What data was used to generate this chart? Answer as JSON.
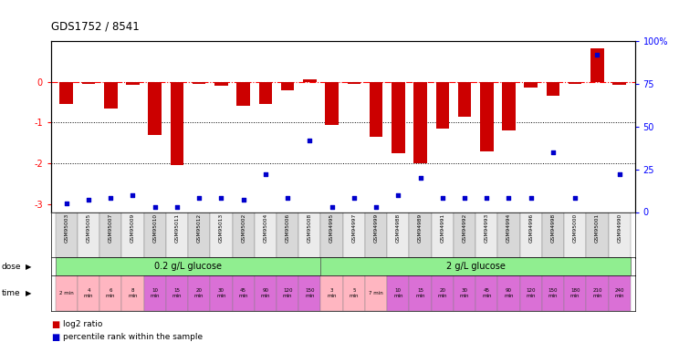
{
  "title": "GDS1752 / 8541",
  "samples": [
    "GSM95003",
    "GSM95005",
    "GSM95007",
    "GSM95009",
    "GSM95010",
    "GSM95011",
    "GSM95012",
    "GSM95013",
    "GSM95002",
    "GSM95004",
    "GSM95006",
    "GSM95008",
    "GSM94995",
    "GSM94997",
    "GSM94999",
    "GSM94988",
    "GSM94989",
    "GSM94991",
    "GSM94992",
    "GSM94993",
    "GSM94994",
    "GSM94996",
    "GSM94998",
    "GSM95000",
    "GSM95001",
    "GSM94990"
  ],
  "log2_ratio": [
    -0.55,
    -0.05,
    -0.65,
    -0.08,
    -1.3,
    -2.05,
    -0.05,
    -0.1,
    -0.6,
    -0.55,
    -0.2,
    0.07,
    -1.05,
    -0.05,
    -1.35,
    -1.75,
    -2.0,
    -1.15,
    -0.85,
    -1.7,
    -1.2,
    -0.15,
    -0.35,
    -0.05,
    0.82,
    -0.08
  ],
  "percentile": [
    5,
    7,
    8,
    10,
    3,
    3,
    8,
    8,
    7,
    22,
    8,
    42,
    3,
    8,
    3,
    10,
    20,
    8,
    8,
    8,
    8,
    8,
    35,
    8,
    92,
    22
  ],
  "dose_labels": [
    "0.2 g/L glucose",
    "2 g/L glucose"
  ],
  "dose_split": 12,
  "time_labels_02": [
    "2 min",
    "4\nmin",
    "6\nmin",
    "8\nmin",
    "10\nmin",
    "15\nmin",
    "20\nmin",
    "30\nmin",
    "45\nmin",
    "90\nmin",
    "120\nmin",
    "150\nmin"
  ],
  "time_labels_2": [
    "3\nmin",
    "5\nmin",
    "7 min",
    "10\nmin",
    "15\nmin",
    "20\nmin",
    "30\nmin",
    "45\nmin",
    "90\nmin",
    "120\nmin",
    "150\nmin",
    "180\nmin",
    "210\nmin",
    "240\nmin"
  ],
  "time_color_02": [
    "#ffb6c1",
    "#ffb6c1",
    "#ffb6c1",
    "#ffb6c1",
    "#da70d6",
    "#da70d6",
    "#da70d6",
    "#da70d6",
    "#da70d6",
    "#da70d6",
    "#da70d6",
    "#da70d6"
  ],
  "time_color_2": [
    "#ffb6c1",
    "#ffb6c1",
    "#ffb6c1",
    "#da70d6",
    "#da70d6",
    "#da70d6",
    "#da70d6",
    "#da70d6",
    "#da70d6",
    "#da70d6",
    "#da70d6",
    "#da70d6",
    "#da70d6",
    "#da70d6"
  ],
  "bar_color": "#cc0000",
  "dot_color": "#0000cc",
  "ylim_left": [
    -3.2,
    1.0
  ],
  "ylim_right": [
    0,
    100
  ],
  "yticks_left": [
    0,
    -1,
    -2,
    -3
  ],
  "yticks_right": [
    0,
    25,
    50,
    75,
    100
  ],
  "dotline_y": [
    -1,
    -2
  ],
  "legend_labels": [
    "log2 ratio",
    "percentile rank within the sample"
  ]
}
